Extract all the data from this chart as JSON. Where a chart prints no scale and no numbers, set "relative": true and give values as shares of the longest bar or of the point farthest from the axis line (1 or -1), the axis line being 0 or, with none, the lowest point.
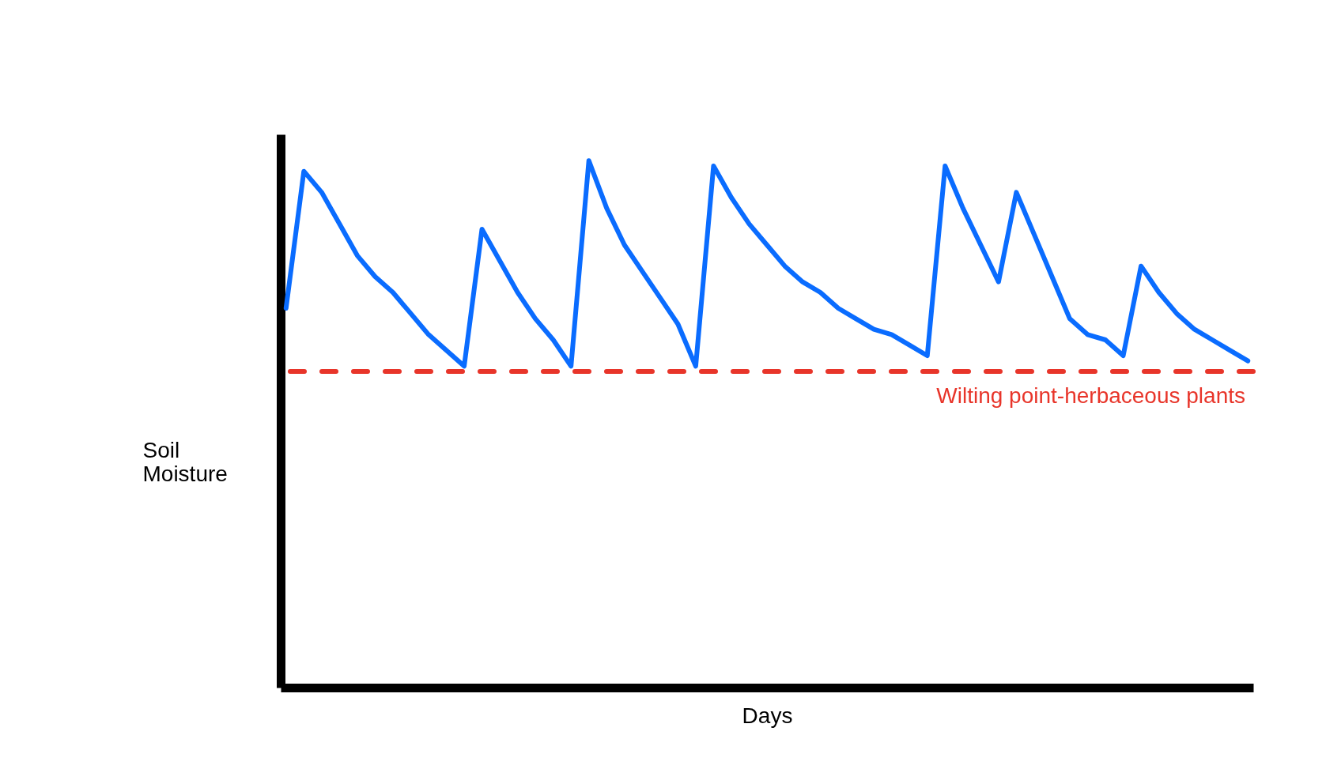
{
  "chart_data": {
    "type": "line",
    "relative": true,
    "xlabel": "Days",
    "ylabel": "Soil Moisture",
    "categories": [
      null,
      null,
      null,
      null,
      null,
      null,
      null,
      null,
      null,
      null,
      null,
      null,
      null,
      null,
      null,
      null,
      null,
      null,
      null,
      null,
      null,
      null,
      null,
      null,
      null,
      null,
      null,
      null,
      null,
      null,
      null,
      null,
      null,
      null,
      null,
      null,
      null,
      null,
      null,
      null,
      null,
      null,
      null,
      null,
      null,
      null,
      null,
      null,
      null,
      null,
      null,
      null,
      null,
      null,
      null
    ],
    "series": [
      {
        "color": "#0a6cff",
        "values": [
          0.72,
          0.98,
          0.94,
          0.88,
          0.82,
          0.78,
          0.75,
          0.71,
          0.67,
          0.64,
          0.61,
          0.87,
          0.81,
          0.75,
          0.7,
          0.66,
          0.61,
          1.0,
          0.91,
          0.84,
          0.79,
          0.74,
          0.69,
          0.61,
          0.99,
          0.93,
          0.88,
          0.84,
          0.8,
          0.77,
          0.75,
          0.72,
          0.7,
          0.68,
          0.67,
          0.65,
          0.63,
          0.99,
          0.91,
          0.84,
          0.77,
          0.94,
          0.86,
          0.78,
          0.7,
          0.67,
          0.66,
          0.63,
          0.8,
          0.75,
          0.71,
          0.68,
          0.66,
          0.64,
          0.62
        ]
      }
    ],
    "ref_lines": [
      {
        "axis": "y",
        "value": 0.6,
        "label": "Wilting point-herbaceous plants",
        "color": "#e8352a",
        "line_style": "dashed"
      }
    ],
    "grid": false
  }
}
